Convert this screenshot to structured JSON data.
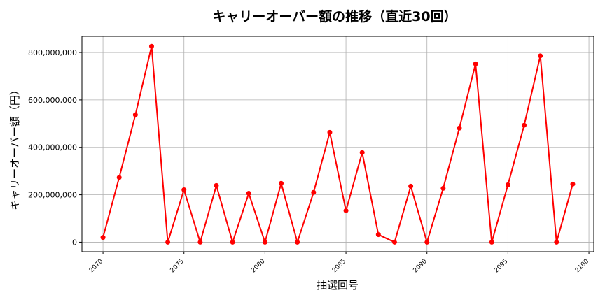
{
  "chart_data": {
    "type": "line",
    "title": "キャリーオーバー額の推移（直近30回）",
    "xlabel": "抽選回号",
    "ylabel": "キャリーオーバー額（円）",
    "xlim": [
      2068.7,
      2100.3
    ],
    "ylim": [
      -40000000,
      868000000
    ],
    "grid": true,
    "x_ticks": [
      2070,
      2075,
      2080,
      2085,
      2090,
      2095,
      2100
    ],
    "x_tick_labels": [
      "2070",
      "2075",
      "2080",
      "2085",
      "2090",
      "2095",
      "2100"
    ],
    "y_ticks": [
      0,
      200000000,
      400000000,
      600000000,
      800000000
    ],
    "y_tick_labels": [
      "0",
      "200,000,000",
      "400,000,000",
      "600,000,000",
      "800,000,000"
    ],
    "series": [
      {
        "color": "#ff0000",
        "x": [
          2070,
          2071,
          2072,
          2073,
          2074,
          2075,
          2076,
          2077,
          2078,
          2079,
          2080,
          2081,
          2082,
          2083,
          2084,
          2085,
          2086,
          2087,
          2088,
          2089,
          2090,
          2091,
          2092,
          2093,
          2094,
          2095,
          2096,
          2097,
          2098,
          2099
        ],
        "values": [
          20000000,
          273000000,
          537000000,
          826000000,
          0,
          221000000,
          0,
          239000000,
          0,
          206000000,
          0,
          248000000,
          0,
          210000000,
          463000000,
          133000000,
          378000000,
          32000000,
          0,
          236000000,
          0,
          227000000,
          481000000,
          752000000,
          0,
          242000000,
          493000000,
          786000000,
          0,
          245000000
        ]
      }
    ]
  }
}
